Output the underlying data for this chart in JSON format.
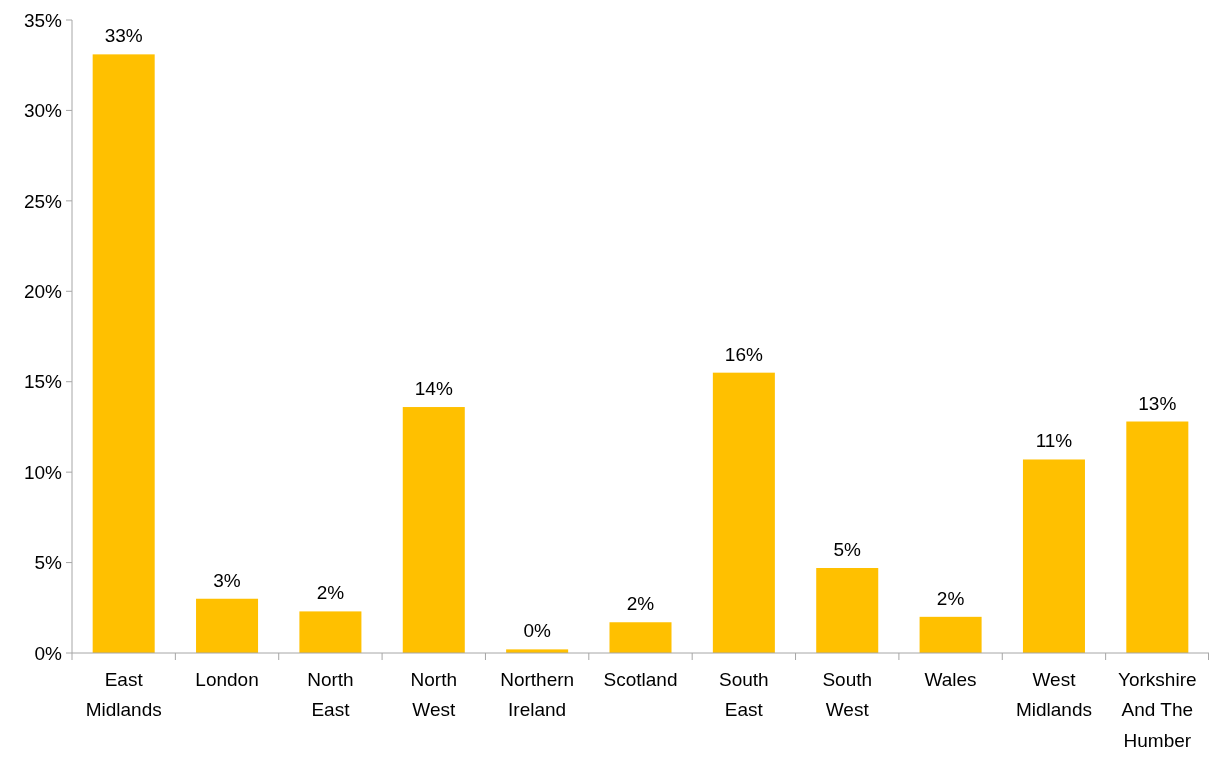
{
  "chart_data": {
    "type": "bar",
    "categories": [
      "East Midlands",
      "London",
      "North East",
      "North West",
      "Northern Ireland",
      "Scotland",
      "South East",
      "South West",
      "Wales",
      "West Midlands",
      "Yorkshire And The Humber"
    ],
    "values": [
      33.1,
      3.0,
      2.3,
      13.6,
      0.2,
      1.7,
      15.5,
      4.7,
      2.0,
      10.7,
      12.8
    ],
    "value_labels": [
      "33%",
      "3%",
      "2%",
      "14%",
      "0%",
      "2%",
      "16%",
      "5%",
      "2%",
      "11%",
      "13%"
    ],
    "color": "#ffc000",
    "ylim": [
      0,
      35
    ],
    "yticks": [
      {
        "value": 0,
        "label": "0%"
      },
      {
        "value": 5,
        "label": "5%"
      },
      {
        "value": 10,
        "label": "10%"
      },
      {
        "value": 15,
        "label": "15%"
      },
      {
        "value": 20,
        "label": "20%"
      },
      {
        "value": 25,
        "label": "25%"
      },
      {
        "value": 30,
        "label": "30%"
      },
      {
        "value": 35,
        "label": "35%"
      }
    ],
    "grid": false
  }
}
